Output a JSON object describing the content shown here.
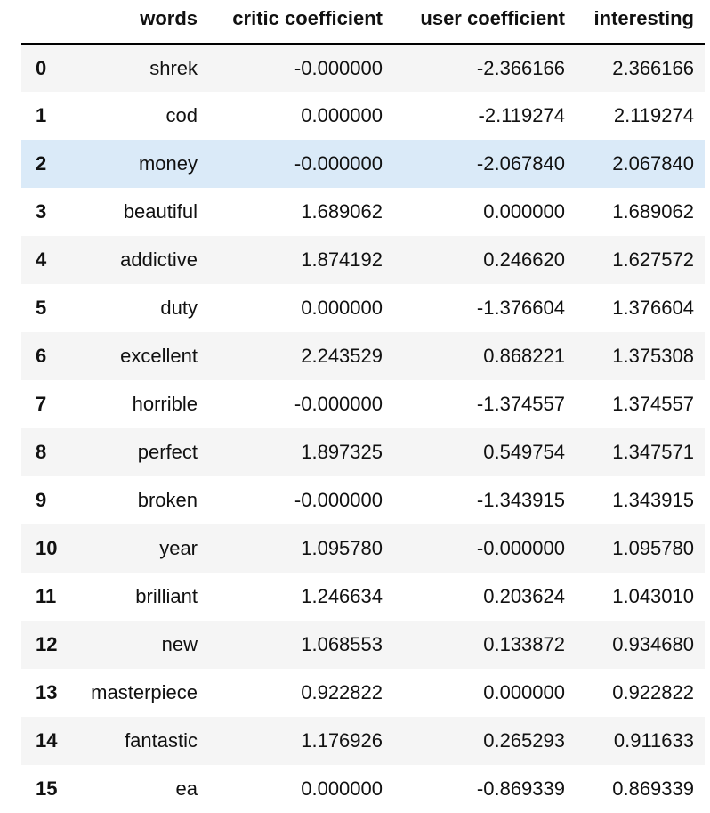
{
  "table": {
    "columns": [
      "",
      "words",
      "critic coefficient",
      "user coefficient",
      "interesting"
    ],
    "selected_row": 2,
    "rows": [
      {
        "index": "0",
        "words": "shrek",
        "critic": "-0.000000",
        "user": "-2.366166",
        "interesting": "2.366166"
      },
      {
        "index": "1",
        "words": "cod",
        "critic": "0.000000",
        "user": "-2.119274",
        "interesting": "2.119274"
      },
      {
        "index": "2",
        "words": "money",
        "critic": "-0.000000",
        "user": "-2.067840",
        "interesting": "2.067840"
      },
      {
        "index": "3",
        "words": "beautiful",
        "critic": "1.689062",
        "user": "0.000000",
        "interesting": "1.689062"
      },
      {
        "index": "4",
        "words": "addictive",
        "critic": "1.874192",
        "user": "0.246620",
        "interesting": "1.627572"
      },
      {
        "index": "5",
        "words": "duty",
        "critic": "0.000000",
        "user": "-1.376604",
        "interesting": "1.376604"
      },
      {
        "index": "6",
        "words": "excellent",
        "critic": "2.243529",
        "user": "0.868221",
        "interesting": "1.375308"
      },
      {
        "index": "7",
        "words": "horrible",
        "critic": "-0.000000",
        "user": "-1.374557",
        "interesting": "1.374557"
      },
      {
        "index": "8",
        "words": "perfect",
        "critic": "1.897325",
        "user": "0.549754",
        "interesting": "1.347571"
      },
      {
        "index": "9",
        "words": "broken",
        "critic": "-0.000000",
        "user": "-1.343915",
        "interesting": "1.343915"
      },
      {
        "index": "10",
        "words": "year",
        "critic": "1.095780",
        "user": "-0.000000",
        "interesting": "1.095780"
      },
      {
        "index": "11",
        "words": "brilliant",
        "critic": "1.246634",
        "user": "0.203624",
        "interesting": "1.043010"
      },
      {
        "index": "12",
        "words": "new",
        "critic": "1.068553",
        "user": "0.133872",
        "interesting": "0.934680"
      },
      {
        "index": "13",
        "words": "masterpiece",
        "critic": "0.922822",
        "user": "0.000000",
        "interesting": "0.922822"
      },
      {
        "index": "14",
        "words": "fantastic",
        "critic": "1.176926",
        "user": "0.265293",
        "interesting": "0.911633"
      },
      {
        "index": "15",
        "words": "ea",
        "critic": "0.000000",
        "user": "-0.869339",
        "interesting": "0.869339"
      }
    ]
  },
  "colors": {
    "stripe": "#f5f5f5",
    "selected": "#daeaf8",
    "header_rule": "#000000"
  }
}
